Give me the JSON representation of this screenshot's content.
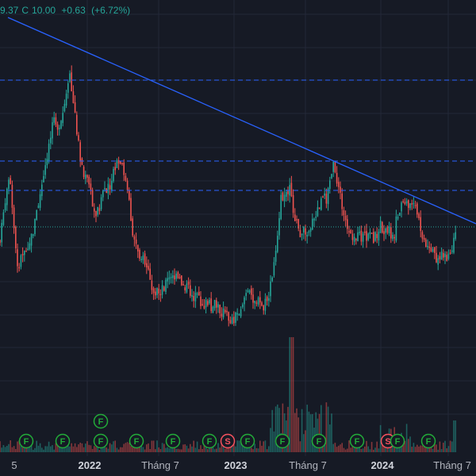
{
  "legend": {
    "close_partial": "9.37",
    "close_label": "C",
    "close_value": "10.00",
    "change": "+0.63",
    "change_pct": "(+6.72%)",
    "color": "#26a69a"
  },
  "colors": {
    "background": "#161a25",
    "grid": "#232838",
    "up": "#26a69a",
    "down": "#ef5350",
    "trendline": "#2962ff",
    "resistance": "#2962ff",
    "last_price_line": "#26a69a",
    "axis_text": "#b2b5be",
    "axis_text_bold": "#d1d4dc",
    "event_F": "#22ab39",
    "event_S": "#f7525f"
  },
  "time_axis": {
    "labels": [
      {
        "text": "5",
        "bold": false
      },
      {
        "text": "2022",
        "bold": true
      },
      {
        "text": "Tháng 7",
        "bold": false
      },
      {
        "text": "2023",
        "bold": true
      },
      {
        "text": "Tháng 7",
        "bold": false
      },
      {
        "text": "2024",
        "bold": true
      },
      {
        "text": "Tháng 7",
        "bold": false
      }
    ]
  },
  "events": {
    "row1": [
      {
        "letter": "F",
        "type": "dividend"
      },
      {
        "letter": "F",
        "type": "dividend"
      },
      {
        "letter": "F",
        "type": "dividend"
      },
      {
        "letter": "F",
        "type": "dividend"
      },
      {
        "letter": "F",
        "type": "dividend"
      },
      {
        "letter": "F",
        "type": "dividend"
      },
      {
        "letter": "S",
        "type": "split"
      },
      {
        "letter": "F",
        "type": "dividend"
      },
      {
        "letter": "F",
        "type": "dividend"
      },
      {
        "letter": "F",
        "type": "dividend"
      },
      {
        "letter": "F",
        "type": "dividend"
      },
      {
        "letter": "S",
        "type": "split"
      },
      {
        "letter": "F",
        "type": "dividend"
      },
      {
        "letter": "F",
        "type": "dividend"
      }
    ],
    "row2": [
      {
        "letter": "F",
        "type": "dividend"
      }
    ]
  }
}
